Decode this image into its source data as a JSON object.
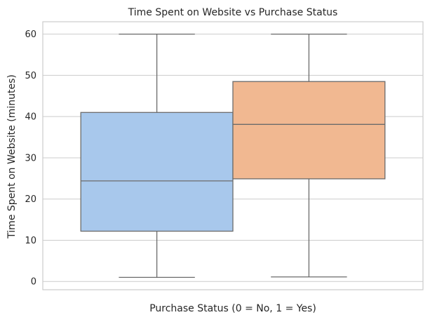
{
  "chart_data": {
    "type": "box",
    "title": "Time Spent on Website vs Purchase Status",
    "xlabel": "Purchase Status (0 = No, 1 = Yes)",
    "ylabel": "Time Spent on Website (minutes)",
    "ylim": [
      -2,
      63
    ],
    "yticks": [
      "0",
      "10",
      "20",
      "30",
      "40",
      "50",
      "60"
    ],
    "grid": true,
    "series": [
      {
        "min": 1.0,
        "q1": 12.2,
        "median": 24.4,
        "q3": 41.0,
        "max": 60.0,
        "color": "#a8c8ec"
      },
      {
        "min": 1.1,
        "q1": 24.9,
        "median": 38.1,
        "q3": 48.5,
        "max": 60.0,
        "color": "#f1b891"
      }
    ]
  },
  "style": {
    "grid_color": "#cccccc",
    "frame_color": "#cccccc",
    "box_edge_color": "#6b6b6b"
  }
}
